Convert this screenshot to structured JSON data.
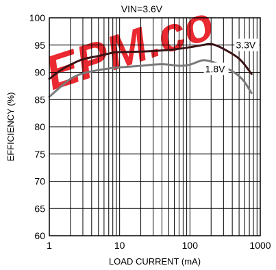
{
  "chart_data": {
    "type": "line",
    "title": "VIN=3.6V",
    "xlabel": "LOAD CURRENT (mA)",
    "ylabel": "EFFICIENCY (%)",
    "x_scale": "log",
    "xlim": [
      1,
      1000
    ],
    "ylim": [
      60,
      100
    ],
    "x_ticks": [
      "1",
      "10",
      "100",
      "1000"
    ],
    "y_ticks": [
      "60",
      "65",
      "70",
      "75",
      "80",
      "85",
      "90",
      "95",
      "100"
    ],
    "grid": true,
    "series": [
      {
        "name": "3.3V",
        "color": "#3a1416",
        "x": [
          1,
          1.5,
          2,
          3,
          5,
          8,
          10,
          20,
          50,
          100,
          150,
          200,
          250,
          300,
          400,
          500,
          600,
          750
        ],
        "y": [
          88.8,
          90.5,
          91.4,
          92.4,
          93.0,
          93.6,
          93.7,
          93.8,
          94.1,
          94.6,
          95.0,
          95.2,
          94.8,
          94.3,
          93.4,
          92.5,
          91.4,
          89.7
        ]
      },
      {
        "name": "1.8V",
        "color": "#7a7a7a",
        "x": [
          1,
          1.5,
          2,
          3,
          5,
          8,
          10,
          20,
          40,
          70,
          100,
          150,
          200,
          250,
          300,
          400,
          500,
          600,
          750
        ],
        "y": [
          85.5,
          87.5,
          88.8,
          89.8,
          90.4,
          90.8,
          90.9,
          91.2,
          91.5,
          91.2,
          91.4,
          92.2,
          92.0,
          91.5,
          91.0,
          90.2,
          89.3,
          88.2,
          86.2
        ]
      }
    ],
    "annotations": [
      {
        "text": "3.3V",
        "x": 450,
        "y": 94.4
      },
      {
        "text": "1.8V",
        "x": 165,
        "y": 90.0
      }
    ]
  },
  "watermark": {
    "text": "EPM.co",
    "color": "#e8141a"
  }
}
